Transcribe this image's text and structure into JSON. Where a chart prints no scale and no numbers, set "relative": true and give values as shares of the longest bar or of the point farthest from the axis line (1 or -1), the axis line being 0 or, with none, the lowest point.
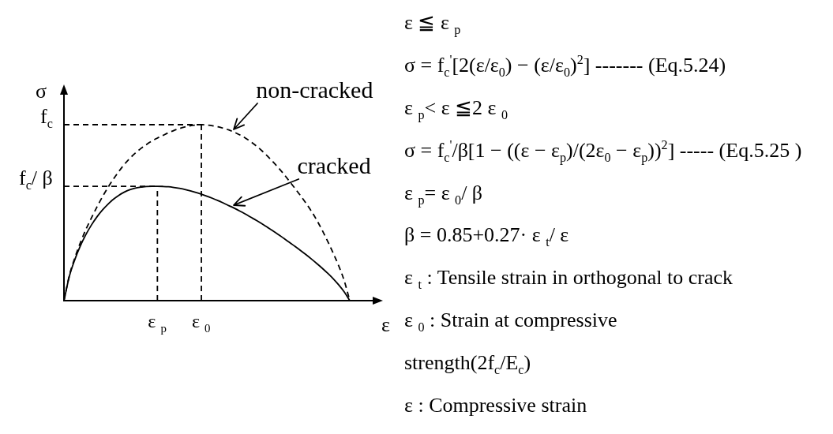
{
  "chart_data": {
    "type": "line",
    "relative": true,
    "xlabel": "ε",
    "ylabel": "σ",
    "tick_labels": "x",
    "marker": "none",
    "categories": [
      null,
      null,
      null,
      null,
      null,
      null,
      null,
      null,
      null,
      null,
      null,
      null,
      null,
      null,
      null,
      null,
      null,
      "ε $_{p}$",
      null,
      null,
      null,
      null,
      null,
      null,
      null,
      "ε $_{0}$",
      null,
      null,
      null,
      null,
      null,
      null,
      null,
      null,
      null,
      null,
      null,
      null,
      null,
      null,
      null,
      null,
      null,
      null,
      null,
      null,
      null,
      null,
      null,
      null,
      null,
      null,
      null
    ],
    "series": [
      {
        "name": "non-cracked",
        "color": "#000000",
        "line_style": "dashed",
        "values": [
          0,
          0.145,
          0.245,
          0.33,
          0.405,
          0.47,
          0.532,
          0.59,
          0.643,
          0.691,
          0.735,
          0.775,
          0.809,
          0.839,
          0.865,
          0.887,
          0.907,
          0.924,
          0.939,
          0.954,
          0.967,
          0.978,
          0.987,
          0.994,
          0.998,
          1,
          0.998,
          0.994,
          0.988,
          0.98,
          0.97,
          0.957,
          0.942,
          0.924,
          0.903,
          0.879,
          0.852,
          0.822,
          0.79,
          0.756,
          0.719,
          0.679,
          0.639,
          0.598,
          0.555,
          0.509,
          0.457,
          0.399,
          0.336,
          0.269,
          0.197,
          0.112,
          0
        ]
      },
      {
        "name": "cracked",
        "color": "#000000",
        "line_style": "solid",
        "values": [
          0,
          0.14,
          0.235,
          0.312,
          0.376,
          0.43,
          0.476,
          0.515,
          0.548,
          0.576,
          0.599,
          0.617,
          0.631,
          0.64,
          0.645,
          0.649,
          0.65,
          0.65,
          0.649,
          0.647,
          0.643,
          0.638,
          0.632,
          0.624,
          0.615,
          0.605,
          0.594,
          0.582,
          0.569,
          0.555,
          0.54,
          0.525,
          0.509,
          0.492,
          0.474,
          0.456,
          0.437,
          0.417,
          0.397,
          0.376,
          0.354,
          0.332,
          0.309,
          0.286,
          0.262,
          0.237,
          0.211,
          0.184,
          0.155,
          0.124,
          0.089,
          0.049,
          0
        ]
      }
    ],
    "ref_lines": [
      {
        "axis": "y",
        "value": 1,
        "label": "f$_{c}$",
        "color": "#000000",
        "line_style": "dashed"
      },
      {
        "axis": "x",
        "value": "ε $_{0}$",
        "color": "#000000",
        "line_style": "dashed"
      },
      {
        "axis": "y",
        "value": 0.65,
        "label": "f$_{c}$/ β",
        "color": "#000000",
        "line_style": "dashed"
      },
      {
        "axis": "x",
        "value": "ε $_{p}$",
        "color": "#000000",
        "line_style": "dashed"
      }
    ],
    "annotations": [
      "ε ≦ ε $_{p}$",
      "σ = f$_{c}$$^{'}$[2(ε/ε$_{0}$) − (ε/ε$_{0}$)$^{2}$] ------- (Eq.5.24)",
      "ε $_{p}$< ε ≦2 ε $_{0}$",
      "σ = f$_{c}$$^{'}$/β[1 − ((ε − ε$_{p}$)/(2ε$_{0}$ − ε$_{p}$))$^{2}$] ----- (Eq.5.25 )",
      "ε $_{p}$= ε $_{0}$/ β",
      "β = 0.85+0.27· ε $_{t}$/ ε",
      "ε $_{t}$ : Tensile strain in orthogonal to crack",
      "ε $_{0}$ : Strain at compressive",
      "strength(2f$_{c}$/E$_{c}$)",
      "ε : Compressive strain"
    ]
  }
}
